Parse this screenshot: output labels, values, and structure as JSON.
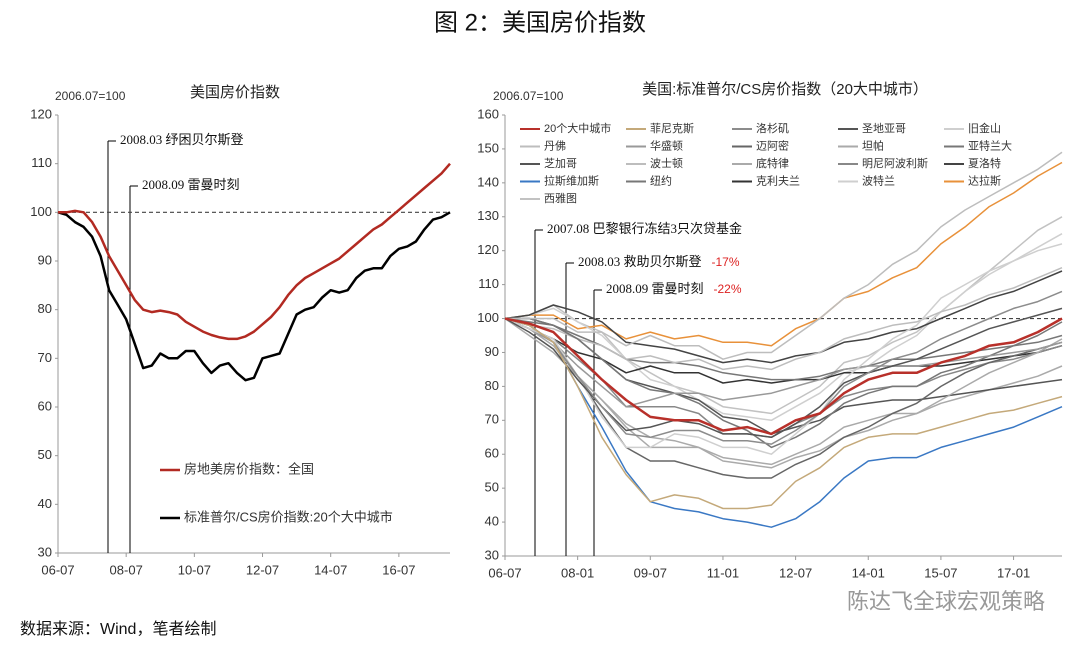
{
  "title": "图 2：美国房价指数",
  "source": "数据来源：Wind，笔者绘制",
  "watermark": "陈达飞全球宏观策略",
  "chart_data": [
    {
      "type": "line",
      "title": "美国房价指数",
      "y_label": "2006.07=100",
      "categories": [
        "06-07",
        null,
        null,
        null,
        null,
        null,
        null,
        null,
        "08-07",
        null,
        null,
        null,
        null,
        null,
        null,
        null,
        "10-07",
        null,
        null,
        null,
        null,
        null,
        null,
        null,
        "12-07",
        null,
        null,
        null,
        null,
        null,
        null,
        null,
        "14-07",
        null,
        null,
        null,
        null,
        null,
        null,
        null,
        "16-07",
        null,
        null,
        null,
        null,
        null,
        null
      ],
      "ylim": [
        30,
        120
      ],
      "yticks": [
        30,
        40,
        50,
        60,
        70,
        80,
        90,
        100,
        110,
        120
      ],
      "hline": 100,
      "series": [
        {
          "name": "房地美房价指数：全国",
          "color": "#b22a22",
          "values": [
            100,
            100,
            100.3,
            100,
            98,
            95,
            91,
            88,
            85,
            82,
            80,
            79.5,
            79.8,
            79.5,
            79,
            77.5,
            76.5,
            75.5,
            74.8,
            74.3,
            74,
            74,
            74.5,
            75.5,
            77,
            78.5,
            80.5,
            83,
            85,
            86.5,
            87.5,
            88.5,
            89.5,
            90.5,
            92,
            93.5,
            95,
            96.5,
            97.5,
            99,
            100.5,
            102,
            103.5,
            105,
            106.5,
            108,
            110
          ]
        },
        {
          "name": "标准普尔/CS房价指数:20个大中城市",
          "color": "#000000",
          "values": [
            100,
            99.5,
            98,
            97,
            95,
            91,
            84,
            81,
            78,
            73,
            68,
            68.5,
            71,
            70,
            70,
            71.5,
            71.5,
            69,
            67,
            68.5,
            69,
            67,
            65.5,
            66,
            70,
            70.5,
            71,
            75,
            79,
            80,
            80.5,
            82.5,
            84,
            83.5,
            84,
            86.5,
            88,
            88.5,
            88.5,
            91,
            92.5,
            93,
            94,
            96.5,
            98.5,
            99,
            100
          ]
        }
      ],
      "annotations": [
        {
          "text": "2008.03 纾困贝尔斯登"
        },
        {
          "text": "2008.09 雷曼时刻"
        }
      ]
    },
    {
      "type": "line",
      "title": "美国:标准普尔/CS房价指数（20大中城市）",
      "y_label": "2006.07=100",
      "categories": [
        "06-07",
        null,
        null,
        "08-01",
        null,
        null,
        "09-07",
        null,
        null,
        "11-01",
        null,
        null,
        "12-07",
        null,
        null,
        "14-01",
        null,
        null,
        "15-07",
        null,
        null,
        "17-01",
        null,
        null
      ],
      "ylim": [
        30,
        160
      ],
      "yticks": [
        30,
        40,
        50,
        60,
        70,
        80,
        90,
        100,
        110,
        120,
        130,
        140,
        150,
        160
      ],
      "hline": 100,
      "series": [
        {
          "name": "20个大中城市",
          "color": "#b8302a",
          "values": [
            100,
            98.5,
            96,
            89,
            82,
            76,
            71,
            70,
            70,
            67,
            68,
            66,
            70,
            72,
            78,
            82,
            84,
            84,
            87,
            89,
            92,
            93,
            96,
            100
          ]
        },
        {
          "name": "菲尼克斯",
          "color": "#c4a97a",
          "values": [
            100,
            98,
            93,
            80,
            65,
            54,
            46,
            48,
            47,
            44,
            44,
            45,
            52,
            56,
            62,
            65,
            66,
            66,
            68,
            70,
            72,
            73,
            75,
            77
          ]
        },
        {
          "name": "洛杉矶",
          "color": "#8c8c8c",
          "values": [
            100,
            98,
            93,
            83,
            74,
            66,
            65,
            67,
            67,
            64,
            64,
            63,
            67,
            72,
            80,
            84,
            88,
            90,
            94,
            97,
            100,
            103,
            105,
            108
          ]
        },
        {
          "name": "圣地亚哥",
          "color": "#555555",
          "values": [
            100,
            96,
            91,
            82,
            74,
            67,
            68,
            70,
            69,
            66,
            66,
            65,
            69,
            74,
            81,
            84,
            86,
            88,
            91,
            94,
            97,
            99,
            101,
            103
          ]
        },
        {
          "name": "旧金山",
          "color": "#cfcfcf",
          "values": [
            100,
            97,
            94,
            83,
            71,
            62,
            62,
            66,
            65,
            62,
            62,
            60,
            66,
            72,
            82,
            88,
            94,
            98,
            106,
            110,
            114,
            117,
            121,
            125
          ]
        },
        {
          "name": "丹佛",
          "color": "#bdbdbd",
          "values": [
            100,
            100,
            100,
            96,
            96,
            92,
            95,
            92,
            92,
            88,
            90,
            90,
            95,
            100,
            106,
            110,
            116,
            120,
            127,
            132,
            136,
            140,
            144,
            149
          ]
        },
        {
          "name": "华盛顿",
          "color": "#999999",
          "values": [
            100,
            97,
            93,
            86,
            80,
            74,
            76,
            78,
            78,
            76,
            77,
            78,
            80,
            82,
            85,
            86,
            86,
            86,
            87,
            88,
            89,
            90,
            91,
            93
          ]
        },
        {
          "name": "迈阿密",
          "color": "#666666",
          "values": [
            100,
            98,
            93,
            83,
            72,
            62,
            58,
            58,
            56,
            54,
            53,
            53,
            57,
            60,
            65,
            68,
            72,
            75,
            80,
            84,
            87,
            89,
            91,
            93
          ]
        },
        {
          "name": "坦帕",
          "color": "#aaaaaa",
          "values": [
            100,
            97,
            92,
            83,
            76,
            69,
            65,
            64,
            62,
            58,
            57,
            56,
            59,
            61,
            65,
            67,
            70,
            72,
            76,
            80,
            84,
            87,
            90,
            94
          ]
        },
        {
          "name": "亚特兰大",
          "color": "#777777",
          "values": [
            100,
            100,
            98,
            94,
            88,
            82,
            79,
            78,
            75,
            70,
            67,
            62,
            65,
            69,
            75,
            78,
            80,
            80,
            84,
            86,
            89,
            92,
            95,
            99
          ]
        },
        {
          "name": "芝加哥",
          "color": "#555555",
          "values": [
            100,
            100,
            98,
            94,
            88,
            82,
            80,
            78,
            76,
            71,
            70,
            66,
            68,
            70,
            74,
            75,
            76,
            76,
            77,
            78,
            79,
            80,
            81,
            82
          ]
        },
        {
          "name": "波士顿",
          "color": "#bdbdbd",
          "values": [
            100,
            98,
            97,
            94,
            92,
            88,
            89,
            87,
            88,
            85,
            86,
            85,
            88,
            90,
            94,
            96,
            98,
            99,
            102,
            104,
            107,
            109,
            112,
            115
          ]
        },
        {
          "name": "底特律",
          "color": "#aaaaaa",
          "values": [
            100,
            95,
            90,
            83,
            76,
            68,
            62,
            62,
            62,
            59,
            58,
            57,
            60,
            63,
            68,
            70,
            72,
            72,
            75,
            77,
            79,
            81,
            83,
            86
          ]
        },
        {
          "name": "明尼阿波利斯",
          "color": "#888888",
          "values": [
            100,
            97,
            94,
            88,
            82,
            74,
            74,
            74,
            72,
            66,
            66,
            65,
            69,
            72,
            77,
            79,
            80,
            80,
            83,
            85,
            87,
            88,
            90,
            92
          ]
        },
        {
          "name": "夏洛特",
          "color": "#444444",
          "values": [
            100,
            101,
            104,
            102,
            99,
            93,
            92,
            91,
            89,
            87,
            88,
            87,
            89,
            90,
            93,
            94,
            96,
            97,
            100,
            103,
            106,
            108,
            111,
            114
          ]
        },
        {
          "name": "拉斯维加斯",
          "color": "#3a78c4",
          "values": [
            100,
            98,
            93,
            80,
            68,
            55,
            46,
            44,
            43,
            41,
            40,
            38.5,
            41,
            46,
            53,
            58,
            59,
            59,
            62,
            64,
            66,
            68,
            71,
            74
          ]
        },
        {
          "name": "纽约",
          "color": "#777777",
          "values": [
            100,
            99,
            98,
            95,
            92,
            88,
            87,
            87,
            86,
            84,
            83,
            82,
            82,
            83,
            85,
            86,
            88,
            88,
            89,
            90,
            91,
            92,
            93,
            95
          ]
        },
        {
          "name": "克利夫兰",
          "color": "#333333",
          "values": [
            100,
            97,
            94,
            90,
            88,
            84,
            86,
            84,
            84,
            81,
            82,
            81,
            82,
            82,
            84,
            84,
            86,
            86,
            86,
            87,
            88,
            89,
            90,
            92
          ]
        },
        {
          "name": "波特兰",
          "color": "#cfcfcf",
          "values": [
            100,
            101,
            103,
            99,
            95,
            88,
            82,
            80,
            76,
            72,
            71,
            70,
            74,
            78,
            84,
            86,
            91,
            95,
            102,
            108,
            113,
            117,
            120,
            122
          ]
        },
        {
          "name": "达拉斯",
          "color": "#e8913a",
          "values": [
            100,
            101,
            101,
            97,
            98,
            94,
            96,
            94,
            95,
            93,
            93,
            92,
            97,
            100,
            106,
            108,
            112,
            115,
            122,
            127,
            133,
            137,
            142,
            146
          ]
        },
        {
          "name": "西雅图",
          "color": "#c2c2c2",
          "values": [
            100,
            101,
            104,
            99,
            96,
            88,
            84,
            80,
            78,
            74,
            73,
            72,
            76,
            80,
            87,
            89,
            93,
            96,
            102,
            108,
            114,
            120,
            126,
            130
          ]
        }
      ],
      "annotations": [
        {
          "text": "2007.08 巴黎银行冻结3只次贷基金"
        },
        {
          "text": "2008.03 救助贝尔斯登",
          "change": "-17%"
        },
        {
          "text": "2008.09 雷曼时刻",
          "change": "-22%"
        }
      ]
    }
  ]
}
